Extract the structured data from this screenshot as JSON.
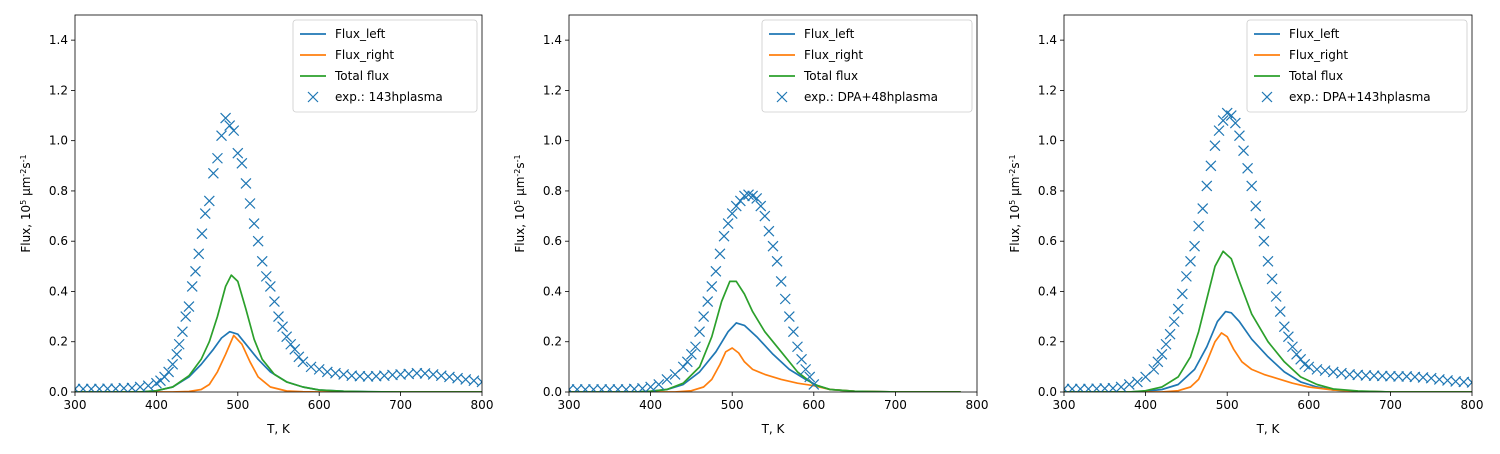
{
  "colors": {
    "flux_left": "#1f77b4",
    "flux_right": "#ff7f0e",
    "total": "#2ca02c",
    "experiment": "#1f77b4"
  },
  "chart_data": [
    {
      "type": "line",
      "xlabel": "T, K",
      "ylabel": "Flux, 10^5 μm^-2 s^-1",
      "xlim": [
        300,
        800
      ],
      "ylim": [
        0,
        1.5
      ],
      "xticks": [
        300,
        400,
        500,
        600,
        700,
        800
      ],
      "yticks": [
        0.0,
        0.2,
        0.4,
        0.6,
        0.8,
        1.0,
        1.2,
        1.4
      ],
      "xticklabels": [
        "300",
        "400",
        "500",
        "600",
        "700",
        "800"
      ],
      "yticklabels": [
        "0.0",
        "0.2",
        "0.4",
        "0.6",
        "0.8",
        "1.0",
        "1.2",
        "1.4"
      ],
      "legend_position": "top-right",
      "series": [
        {
          "name": "Flux_left",
          "kind": "line",
          "color_key": "flux_left",
          "x": [
            300,
            380,
            400,
            420,
            440,
            455,
            470,
            480,
            490,
            500,
            510,
            525,
            540,
            560,
            580,
            600,
            630,
            660,
            700,
            760,
            800
          ],
          "y": [
            0.0,
            0.0,
            0.005,
            0.02,
            0.06,
            0.11,
            0.17,
            0.215,
            0.24,
            0.23,
            0.19,
            0.13,
            0.08,
            0.04,
            0.02,
            0.008,
            0.003,
            0.001,
            0.0,
            0.0,
            0.0
          ]
        },
        {
          "name": "Flux_right",
          "kind": "line",
          "color_key": "flux_right",
          "x": [
            300,
            420,
            440,
            455,
            465,
            475,
            485,
            495,
            505,
            515,
            525,
            540,
            560,
            580,
            600,
            800
          ],
          "y": [
            0.0,
            0.0,
            0.002,
            0.01,
            0.03,
            0.08,
            0.15,
            0.225,
            0.19,
            0.12,
            0.06,
            0.02,
            0.004,
            0.001,
            0.0,
            0.0
          ]
        },
        {
          "name": "Total flux",
          "kind": "line",
          "color_key": "total",
          "x": [
            300,
            380,
            400,
            420,
            440,
            455,
            465,
            475,
            485,
            492,
            500,
            510,
            520,
            530,
            545,
            560,
            580,
            600,
            630,
            660,
            700,
            800
          ],
          "y": [
            0.0,
            0.0,
            0.005,
            0.02,
            0.065,
            0.13,
            0.2,
            0.3,
            0.42,
            0.465,
            0.44,
            0.33,
            0.21,
            0.13,
            0.07,
            0.04,
            0.02,
            0.008,
            0.003,
            0.001,
            0.0,
            0.0
          ]
        },
        {
          "name": "exp.: 143hplasma",
          "kind": "scatter",
          "color_key": "experiment",
          "x": [
            300,
            310,
            320,
            330,
            340,
            350,
            360,
            370,
            380,
            390,
            400,
            405,
            410,
            415,
            420,
            425,
            428,
            432,
            436,
            440,
            444,
            448,
            452,
            456,
            460,
            465,
            470,
            475,
            480,
            485,
            490,
            495,
            500,
            505,
            510,
            515,
            520,
            525,
            530,
            535,
            540,
            545,
            550,
            555,
            560,
            565,
            570,
            575,
            580,
            590,
            600,
            610,
            620,
            630,
            640,
            650,
            660,
            670,
            680,
            690,
            700,
            710,
            720,
            730,
            740,
            750,
            760,
            770,
            780,
            790,
            800
          ],
          "y": [
            0.012,
            0.012,
            0.012,
            0.012,
            0.013,
            0.013,
            0.015,
            0.016,
            0.02,
            0.025,
            0.035,
            0.045,
            0.06,
            0.08,
            0.11,
            0.15,
            0.19,
            0.24,
            0.3,
            0.34,
            0.42,
            0.48,
            0.55,
            0.63,
            0.71,
            0.76,
            0.87,
            0.93,
            1.02,
            1.09,
            1.06,
            1.04,
            0.95,
            0.91,
            0.83,
            0.75,
            0.67,
            0.6,
            0.52,
            0.46,
            0.42,
            0.36,
            0.3,
            0.26,
            0.22,
            0.19,
            0.17,
            0.14,
            0.12,
            0.1,
            0.09,
            0.08,
            0.075,
            0.07,
            0.065,
            0.063,
            0.062,
            0.063,
            0.065,
            0.068,
            0.07,
            0.072,
            0.075,
            0.074,
            0.07,
            0.065,
            0.06,
            0.055,
            0.05,
            0.045,
            0.04
          ]
        }
      ]
    },
    {
      "type": "line",
      "xlabel": "T, K",
      "ylabel": "Flux, 10^5 μm^-2 s^-1",
      "xlim": [
        300,
        800
      ],
      "ylim": [
        0,
        1.5
      ],
      "xticks": [
        300,
        400,
        500,
        600,
        700,
        800
      ],
      "yticks": [
        0.0,
        0.2,
        0.4,
        0.6,
        0.8,
        1.0,
        1.2,
        1.4
      ],
      "xticklabels": [
        "300",
        "400",
        "500",
        "600",
        "700",
        "800"
      ],
      "yticklabels": [
        "0.0",
        "0.2",
        "0.4",
        "0.6",
        "0.8",
        "1.0",
        "1.2",
        "1.4"
      ],
      "legend_position": "top-right",
      "series": [
        {
          "name": "Flux_left",
          "kind": "line",
          "color_key": "flux_left",
          "x": [
            300,
            380,
            400,
            420,
            440,
            460,
            480,
            495,
            505,
            515,
            530,
            550,
            570,
            590,
            605,
            620,
            650,
            700,
            780
          ],
          "y": [
            0.0,
            0.0,
            0.003,
            0.01,
            0.03,
            0.08,
            0.16,
            0.24,
            0.275,
            0.265,
            0.22,
            0.15,
            0.09,
            0.05,
            0.025,
            0.01,
            0.003,
            0.0,
            0.0
          ]
        },
        {
          "name": "Flux_right",
          "kind": "line",
          "color_key": "flux_right",
          "x": [
            300,
            430,
            450,
            465,
            475,
            485,
            492,
            500,
            508,
            515,
            525,
            540,
            560,
            580,
            600,
            620,
            650,
            700,
            780
          ],
          "y": [
            0.0,
            0.0,
            0.005,
            0.02,
            0.05,
            0.11,
            0.16,
            0.175,
            0.155,
            0.12,
            0.09,
            0.07,
            0.05,
            0.035,
            0.025,
            0.01,
            0.003,
            0.0,
            0.0
          ]
        },
        {
          "name": "Total flux",
          "kind": "line",
          "color_key": "total",
          "x": [
            300,
            380,
            400,
            420,
            440,
            460,
            475,
            487,
            497,
            505,
            515,
            525,
            540,
            560,
            580,
            600,
            620,
            650,
            700,
            780
          ],
          "y": [
            0.0,
            0.0,
            0.003,
            0.01,
            0.035,
            0.1,
            0.22,
            0.36,
            0.44,
            0.44,
            0.39,
            0.32,
            0.24,
            0.16,
            0.08,
            0.03,
            0.01,
            0.003,
            0.0,
            0.0
          ]
        },
        {
          "name": "exp.: DPA+48hplasma",
          "kind": "scatter",
          "color_key": "experiment",
          "x": [
            300,
            310,
            320,
            330,
            340,
            350,
            360,
            370,
            380,
            390,
            400,
            410,
            420,
            430,
            440,
            445,
            450,
            455,
            460,
            465,
            470,
            475,
            480,
            485,
            490,
            495,
            500,
            505,
            510,
            515,
            520,
            525,
            530,
            535,
            540,
            545,
            550,
            555,
            560,
            565,
            570,
            575,
            580,
            585,
            590,
            595,
            600
          ],
          "y": [
            0.01,
            0.01,
            0.01,
            0.01,
            0.01,
            0.01,
            0.01,
            0.01,
            0.012,
            0.014,
            0.02,
            0.03,
            0.05,
            0.07,
            0.1,
            0.12,
            0.15,
            0.18,
            0.24,
            0.3,
            0.36,
            0.42,
            0.48,
            0.55,
            0.62,
            0.67,
            0.71,
            0.74,
            0.76,
            0.78,
            0.785,
            0.78,
            0.77,
            0.74,
            0.7,
            0.64,
            0.58,
            0.52,
            0.44,
            0.37,
            0.3,
            0.24,
            0.18,
            0.13,
            0.09,
            0.06,
            0.03
          ]
        }
      ]
    },
    {
      "type": "line",
      "xlabel": "T, K",
      "ylabel": "Flux, 10^5 μm^-2 s^-1",
      "xlim": [
        300,
        800
      ],
      "ylim": [
        0,
        1.5
      ],
      "xticks": [
        300,
        400,
        500,
        600,
        700,
        800
      ],
      "yticks": [
        0.0,
        0.2,
        0.4,
        0.6,
        0.8,
        1.0,
        1.2,
        1.4
      ],
      "xticklabels": [
        "300",
        "400",
        "500",
        "600",
        "700",
        "800"
      ],
      "yticklabels": [
        "0.0",
        "0.2",
        "0.4",
        "0.6",
        "0.8",
        "1.0",
        "1.2",
        "1.4"
      ],
      "legend_position": "top-right",
      "series": [
        {
          "name": "Flux_left",
          "kind": "line",
          "color_key": "flux_left",
          "x": [
            300,
            380,
            400,
            420,
            440,
            460,
            475,
            488,
            498,
            505,
            515,
            530,
            550,
            570,
            590,
            610,
            630,
            660,
            700,
            800
          ],
          "y": [
            0.0,
            0.0,
            0.003,
            0.01,
            0.03,
            0.09,
            0.18,
            0.28,
            0.32,
            0.315,
            0.28,
            0.21,
            0.14,
            0.08,
            0.04,
            0.02,
            0.008,
            0.003,
            0.0,
            0.0
          ]
        },
        {
          "name": "Flux_right",
          "kind": "line",
          "color_key": "flux_right",
          "x": [
            300,
            420,
            440,
            455,
            465,
            475,
            485,
            493,
            500,
            508,
            518,
            530,
            545,
            560,
            580,
            600,
            630,
            660,
            700,
            800
          ],
          "y": [
            0.0,
            0.0,
            0.005,
            0.02,
            0.05,
            0.12,
            0.2,
            0.235,
            0.22,
            0.17,
            0.12,
            0.09,
            0.07,
            0.055,
            0.035,
            0.02,
            0.008,
            0.003,
            0.0,
            0.0
          ]
        },
        {
          "name": "Total flux",
          "kind": "line",
          "color_key": "total",
          "x": [
            300,
            380,
            400,
            420,
            440,
            455,
            465,
            475,
            485,
            495,
            505,
            515,
            530,
            550,
            570,
            590,
            610,
            630,
            660,
            700,
            800
          ],
          "y": [
            0.0,
            0.0,
            0.005,
            0.02,
            0.06,
            0.14,
            0.24,
            0.37,
            0.5,
            0.56,
            0.53,
            0.44,
            0.31,
            0.2,
            0.12,
            0.06,
            0.03,
            0.012,
            0.004,
            0.0,
            0.0
          ]
        },
        {
          "name": "exp.: DPA+143hplasma",
          "kind": "scatter",
          "color_key": "experiment",
          "x": [
            300,
            310,
            320,
            330,
            340,
            350,
            360,
            370,
            380,
            390,
            400,
            410,
            415,
            420,
            425,
            430,
            435,
            440,
            445,
            450,
            455,
            460,
            465,
            470,
            475,
            480,
            485,
            490,
            495,
            500,
            505,
            510,
            515,
            520,
            525,
            530,
            535,
            540,
            545,
            550,
            555,
            560,
            565,
            570,
            575,
            580,
            585,
            590,
            595,
            600,
            610,
            620,
            630,
            640,
            650,
            660,
            670,
            680,
            690,
            700,
            710,
            720,
            730,
            740,
            750,
            760,
            770,
            780,
            790,
            800
          ],
          "y": [
            0.012,
            0.012,
            0.012,
            0.012,
            0.013,
            0.014,
            0.015,
            0.02,
            0.03,
            0.04,
            0.06,
            0.09,
            0.12,
            0.15,
            0.19,
            0.23,
            0.28,
            0.33,
            0.39,
            0.46,
            0.52,
            0.58,
            0.66,
            0.73,
            0.82,
            0.9,
            0.98,
            1.04,
            1.08,
            1.11,
            1.1,
            1.07,
            1.02,
            0.96,
            0.89,
            0.82,
            0.74,
            0.67,
            0.6,
            0.52,
            0.45,
            0.38,
            0.32,
            0.26,
            0.22,
            0.18,
            0.15,
            0.13,
            0.11,
            0.1,
            0.09,
            0.085,
            0.08,
            0.075,
            0.07,
            0.068,
            0.066,
            0.065,
            0.064,
            0.063,
            0.062,
            0.062,
            0.06,
            0.058,
            0.055,
            0.05,
            0.046,
            0.042,
            0.04,
            0.038
          ]
        }
      ]
    }
  ]
}
